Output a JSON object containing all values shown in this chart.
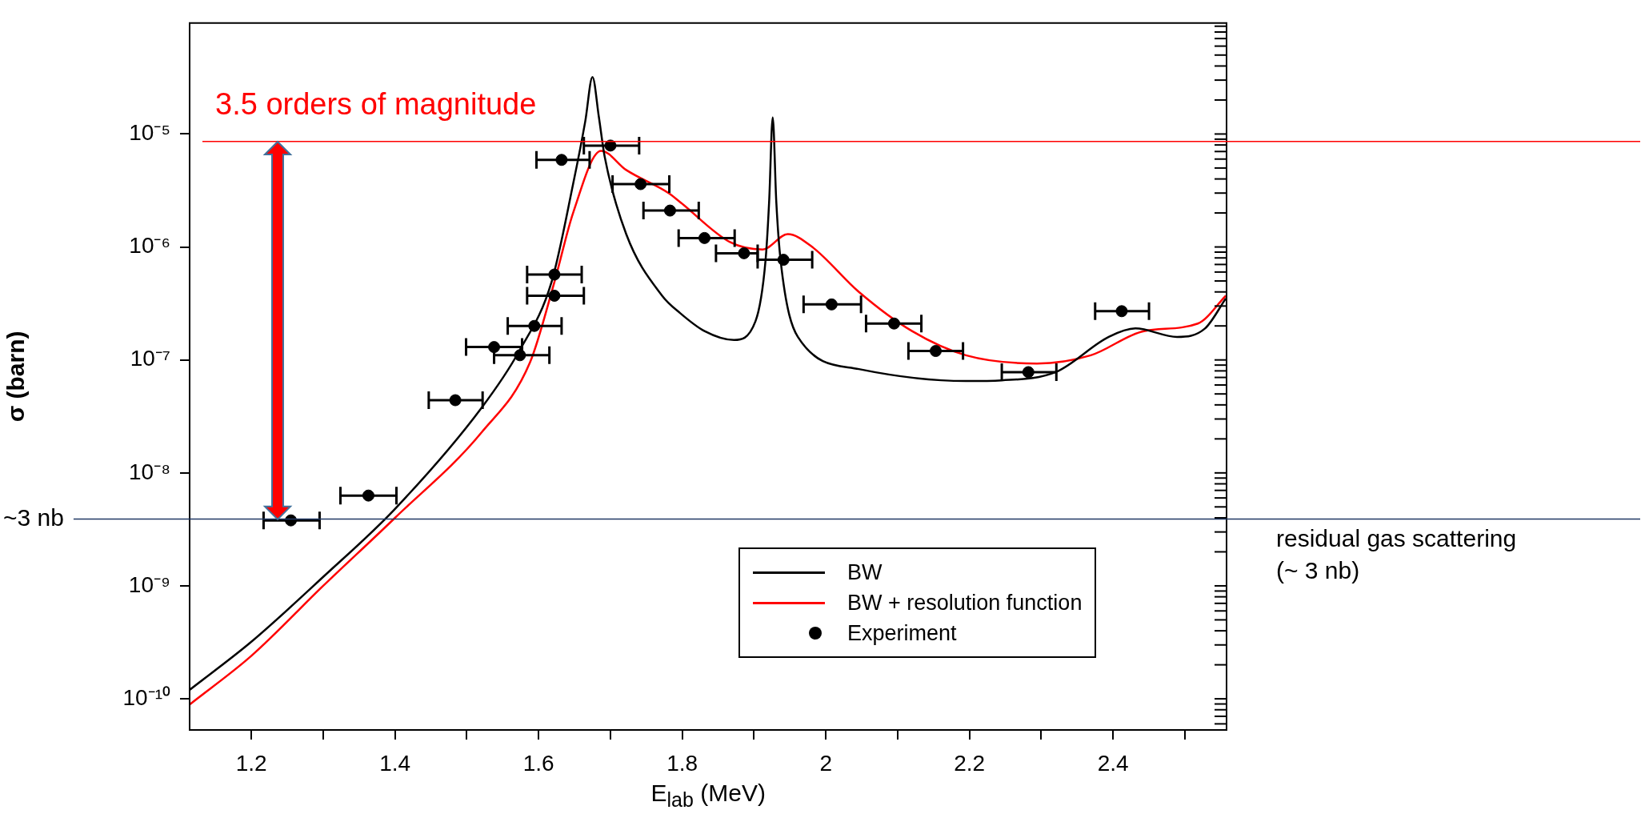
{
  "chart_data": {
    "type": "scatter",
    "xlabel": "E$_{lab}$ (MeV)",
    "ylabel": "σ (barn)",
    "log": "y",
    "legend": "bottom right",
    "xlim": [
      1.114,
      2.558
    ],
    "xticks": [
      {
        "value": 1.2,
        "label": "1.2"
      },
      {
        "value": 1.3,
        "label": null
      },
      {
        "value": 1.4,
        "label": "1.4"
      },
      {
        "value": 1.5,
        "label": null
      },
      {
        "value": 1.6,
        "label": "1.6"
      },
      {
        "value": 1.7,
        "label": null
      },
      {
        "value": 1.8,
        "label": "1.8"
      },
      {
        "value": 1.9,
        "label": null
      },
      {
        "value": 2,
        "label": "2"
      },
      {
        "value": 2.1,
        "label": null
      },
      {
        "value": 2.2,
        "label": "2.2"
      },
      {
        "value": 2.3,
        "label": null
      },
      {
        "value": 2.4,
        "label": "2.4"
      },
      {
        "value": 2.5,
        "label": null
      }
    ],
    "ylim": [
      5.3e-11,
      9.6e-05
    ],
    "yticks": [
      {
        "value": 1e-10,
        "label": "10⁻¹⁰"
      },
      {
        "value": 1e-09,
        "label": "10⁻⁹"
      },
      {
        "value": 1e-08,
        "label": "10⁻⁸"
      },
      {
        "value": 1e-07,
        "label": "10⁻⁷"
      },
      {
        "value": 1e-06,
        "label": "10⁻⁶"
      },
      {
        "value": 1e-05,
        "label": "10⁻⁵"
      }
    ],
    "series": [
      {
        "name": "BW",
        "type": "line",
        "color": "#000000",
        "marker": "none",
        "x": [
          1.114,
          1.2,
          1.3,
          1.4,
          1.521,
          1.573,
          1.618,
          1.648,
          1.665,
          1.675,
          1.684,
          1.692,
          1.722,
          1.772,
          1.797,
          1.831,
          1.872,
          1.902,
          1.916,
          1.921,
          1.926,
          1.931,
          1.937,
          1.961,
          2.046,
          2.195,
          2.245,
          2.32,
          2.394,
          2.431,
          2.489,
          2.528,
          2.557
        ],
        "values": [
          1.2e-10,
          3.2e-10,
          1.2e-09,
          4.8e-09,
          3.8e-08,
          1.2e-07,
          4.9e-07,
          3.6e-06,
          1.3e-05,
          3.2e-05,
          1.4e-05,
          6.3e-06,
          1.3e-06,
          3.7e-07,
          2.6e-07,
          1.8e-07,
          1.5e-07,
          2.2e-07,
          7.6e-07,
          2.5e-06,
          1.4e-05,
          2.5e-06,
          7.6e-07,
          1.6e-07,
          8.3e-08,
          6.5e-08,
          6.6e-08,
          7.8e-08,
          1.6e-07,
          1.9e-07,
          1.6e-07,
          1.9e-07,
          3.5e-07
        ]
      },
      {
        "name": "BW + resolution function",
        "type": "line",
        "color": "#ff0000",
        "marker": "none",
        "x": [
          1.114,
          1.2,
          1.3,
          1.4,
          1.521,
          1.588,
          1.622,
          1.648,
          1.687,
          1.722,
          1.781,
          1.797,
          1.867,
          1.912,
          1.947,
          1.981,
          2.046,
          2.12,
          2.195,
          2.294,
          2.369,
          2.443,
          2.518,
          2.557
        ],
        "values": [
          8.9e-11,
          2.4e-10,
          1e-09,
          4e-09,
          2.3e-08,
          9.5e-08,
          4.9e-07,
          2e-06,
          7.1e-06,
          4.8e-06,
          3e-06,
          2.5e-06,
          1.1e-06,
          9.5e-07,
          1.3e-06,
          1e-06,
          4e-07,
          1.8e-07,
          1.1e-07,
          9.3e-08,
          1.1e-07,
          1.8e-07,
          2.1e-07,
          3.7e-07
        ]
      },
      {
        "name": "Experiment",
        "type": "scatter",
        "color": "#000000",
        "marker": "circle",
        "x": [
          1.255,
          1.363,
          1.484,
          1.538,
          1.574,
          1.594,
          1.622,
          1.622,
          1.632,
          1.7,
          1.742,
          1.783,
          1.831,
          1.886,
          1.941,
          2.008,
          2.095,
          2.153,
          2.282,
          2.412
        ],
        "values": [
          3.8e-09,
          6.3e-09,
          4.4e-08,
          1.3e-07,
          1.1e-07,
          2e-07,
          3.7e-07,
          5.7e-07,
          5.9e-06,
          7.9e-06,
          3.6e-06,
          2.1e-06,
          1.2e-06,
          8.8e-07,
          7.7e-07,
          3.1e-07,
          2.1e-07,
          1.2e-07,
          7.8e-08,
          2.7e-07
        ],
        "xerrors": [
          [
            1.217,
            1.295
          ],
          [
            1.324,
            1.402
          ],
          [
            1.447,
            1.522
          ],
          [
            1.499,
            1.577
          ],
          [
            1.538,
            1.615
          ],
          [
            1.557,
            1.632
          ],
          [
            1.584,
            1.663
          ],
          [
            1.584,
            1.66
          ],
          [
            1.597,
            1.671
          ],
          [
            1.663,
            1.74
          ],
          [
            1.703,
            1.782
          ],
          [
            1.746,
            1.823
          ],
          [
            1.795,
            1.873
          ],
          [
            1.847,
            1.905
          ],
          [
            1.905,
            1.981
          ],
          [
            1.969,
            2.049
          ],
          [
            2.056,
            2.133
          ],
          [
            2.115,
            2.191
          ],
          [
            2.245,
            2.321
          ],
          [
            2.375,
            2.45
          ]
        ]
      }
    ],
    "ref_lines": [
      {
        "axis": "y",
        "value": 8.6e-06,
        "label": "3.5 orders of magnitude",
        "color": "#ff0000"
      },
      {
        "axis": "y",
        "value": 3.9e-09,
        "label": "~3 nb",
        "color": "#203864"
      }
    ],
    "annotations": [
      "residual gas scattering (~ 3 nb)"
    ]
  }
}
